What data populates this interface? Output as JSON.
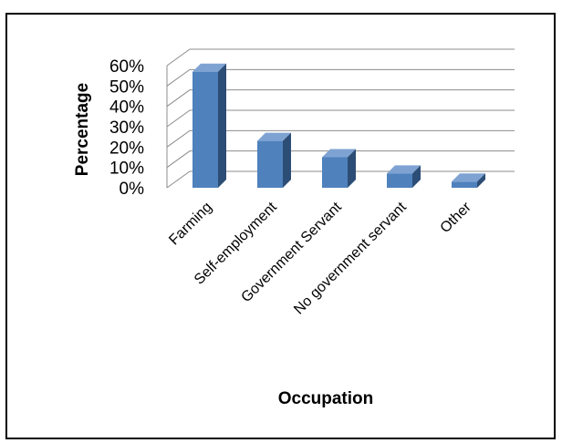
{
  "chart_data": {
    "type": "bar",
    "title": "",
    "xlabel": "Occupation",
    "ylabel": "Percentage",
    "categories": [
      "Farming",
      "Self-employment",
      "Government Servant",
      "No government servant",
      "Other"
    ],
    "values": [
      57,
      23,
      15,
      7,
      3
    ],
    "value_format": "percent",
    "ylim": [
      0,
      60
    ],
    "ytick_labels": [
      "0%",
      "10%",
      "20%",
      "30%",
      "40%",
      "50%",
      "60%"
    ],
    "grid": true,
    "legend": "none",
    "style": "3d-column",
    "colors": {
      "bar_front": "#4F81BD",
      "bar_side": "#2C4D75",
      "bar_top": "#7EA3D3",
      "gridline": "#8C8C8C",
      "frame": "#000000"
    }
  }
}
